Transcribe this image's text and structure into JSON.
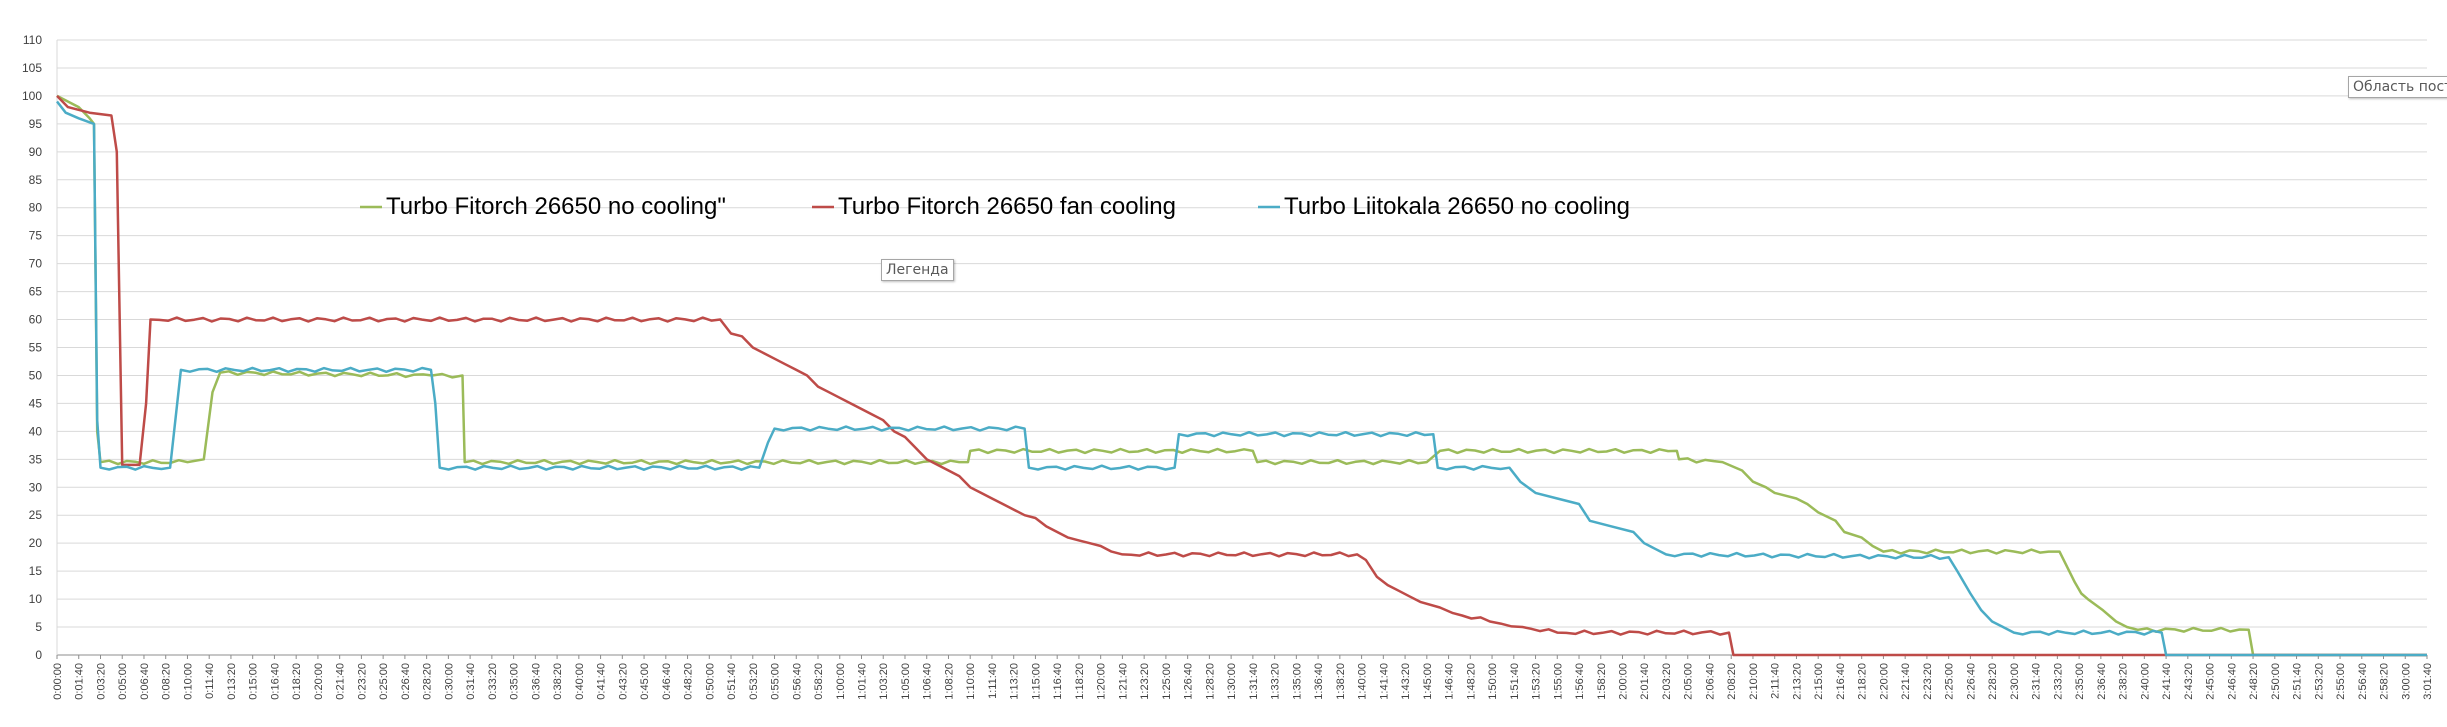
{
  "chart_data": {
    "type": "line",
    "title": "",
    "xlabel": "",
    "ylabel": "",
    "ylim": [
      0,
      110
    ],
    "ytick_step": 5,
    "xlim": [
      "0:00:00",
      "3:01:40"
    ],
    "xtick_step": "0:01:40",
    "grid": "horizontal",
    "legend_position": "top-center",
    "series": [
      {
        "name": "Turbo Fitorch 26650 no cooling\"",
        "color": "#9bbb59",
        "points": [
          [
            "0:00:00",
            100
          ],
          [
            "0:01:40",
            98
          ],
          [
            "0:02:30",
            96
          ],
          [
            "0:02:50",
            95
          ],
          [
            "0:03:05",
            40
          ],
          [
            "0:03:20",
            34.5
          ],
          [
            "0:10:00",
            34.5
          ],
          [
            "0:11:15",
            35
          ],
          [
            "0:11:55",
            47
          ],
          [
            "0:12:30",
            50.5
          ],
          [
            "0:28:45",
            50
          ],
          [
            "0:31:05",
            50
          ],
          [
            "0:31:15",
            34.5
          ],
          [
            "1:09:50",
            34.5
          ],
          [
            "1:10:00",
            36.5
          ],
          [
            "1:31:40",
            36.5
          ],
          [
            "1:32:00",
            34.5
          ],
          [
            "1:45:00",
            34.5
          ],
          [
            "1:46:00",
            36.5
          ],
          [
            "2:04:10",
            36.5
          ],
          [
            "2:04:20",
            35
          ],
          [
            "2:07:40",
            34.5
          ],
          [
            "2:09:10",
            33
          ],
          [
            "2:10:00",
            31
          ],
          [
            "2:11:00",
            30
          ],
          [
            "2:11:40",
            29
          ],
          [
            "2:13:20",
            28
          ],
          [
            "2:14:10",
            27
          ],
          [
            "2:15:00",
            25.5
          ],
          [
            "2:16:20",
            24
          ],
          [
            "2:17:00",
            22
          ],
          [
            "2:18:20",
            21
          ],
          [
            "2:19:10",
            19.5
          ],
          [
            "2:20:00",
            18.5
          ],
          [
            "2:32:40",
            18.5
          ],
          [
            "2:33:30",
            18.5
          ],
          [
            "2:34:40",
            13
          ],
          [
            "2:35:10",
            11
          ],
          [
            "2:35:40",
            10
          ],
          [
            "2:36:50",
            8
          ],
          [
            "2:37:50",
            6
          ],
          [
            "2:38:40",
            5
          ],
          [
            "2:39:30",
            4.5
          ],
          [
            "2:48:00",
            4.5
          ],
          [
            "2:48:20",
            0
          ],
          [
            "3:01:40",
            0
          ]
        ]
      },
      {
        "name": "Turbo Fitorch 26650 fan cooling",
        "color": "#be4b48",
        "points": [
          [
            "0:00:00",
            100
          ],
          [
            "0:00:50",
            98
          ],
          [
            "0:02:30",
            97
          ],
          [
            "0:04:10",
            96.5
          ],
          [
            "0:04:35",
            90
          ],
          [
            "0:05:00",
            34
          ],
          [
            "0:06:20",
            34
          ],
          [
            "0:06:50",
            45
          ],
          [
            "0:07:10",
            60
          ],
          [
            "0:50:50",
            60
          ],
          [
            "0:51:40",
            57.5
          ],
          [
            "0:52:30",
            57
          ],
          [
            "0:53:20",
            55
          ],
          [
            "0:54:10",
            54
          ],
          [
            "0:55:00",
            53
          ],
          [
            "0:55:50",
            52
          ],
          [
            "0:56:40",
            51
          ],
          [
            "0:57:30",
            50
          ],
          [
            "0:58:20",
            48
          ],
          [
            "0:59:10",
            47
          ],
          [
            "1:00:00",
            46
          ],
          [
            "1:00:50",
            45
          ],
          [
            "1:01:40",
            44
          ],
          [
            "1:02:30",
            43
          ],
          [
            "1:03:20",
            42
          ],
          [
            "1:04:10",
            40
          ],
          [
            "1:05:00",
            39
          ],
          [
            "1:05:50",
            37
          ],
          [
            "1:06:40",
            35
          ],
          [
            "1:07:30",
            34
          ],
          [
            "1:08:20",
            33
          ],
          [
            "1:09:10",
            32
          ],
          [
            "1:10:00",
            30
          ],
          [
            "1:10:50",
            29
          ],
          [
            "1:11:40",
            28
          ],
          [
            "1:12:30",
            27
          ],
          [
            "1:13:20",
            26
          ],
          [
            "1:14:10",
            25
          ],
          [
            "1:15:00",
            24.5
          ],
          [
            "1:15:50",
            23
          ],
          [
            "1:16:40",
            22
          ],
          [
            "1:17:30",
            21
          ],
          [
            "1:18:20",
            20.5
          ],
          [
            "1:19:10",
            20
          ],
          [
            "1:20:00",
            19.5
          ],
          [
            "1:20:50",
            18.5
          ],
          [
            "1:21:40",
            18
          ],
          [
            "1:39:40",
            18
          ],
          [
            "1:40:20",
            17
          ],
          [
            "1:41:10",
            14
          ],
          [
            "1:42:00",
            12.5
          ],
          [
            "1:42:50",
            11.5
          ],
          [
            "1:43:40",
            10.5
          ],
          [
            "1:44:30",
            9.5
          ],
          [
            "1:46:00",
            8.5
          ],
          [
            "1:47:00",
            7.5
          ],
          [
            "1:49:50",
            6
          ],
          [
            "1:52:20",
            5
          ],
          [
            "1:55:00",
            4
          ],
          [
            "2:08:10",
            4
          ],
          [
            "2:08:30",
            0
          ],
          [
            "3:01:40",
            0
          ]
        ]
      },
      {
        "name": "Turbo Liitokala 26650 no cooling",
        "color": "#4bacc6",
        "points": [
          [
            "0:00:00",
            99
          ],
          [
            "0:00:40",
            97
          ],
          [
            "0:01:40",
            96
          ],
          [
            "0:02:50",
            95
          ],
          [
            "0:03:05",
            42
          ],
          [
            "0:03:20",
            33.5
          ],
          [
            "0:08:40",
            33.5
          ],
          [
            "0:09:30",
            51
          ],
          [
            "0:28:40",
            51
          ],
          [
            "0:29:00",
            45
          ],
          [
            "0:29:20",
            33.5
          ],
          [
            "0:53:50",
            33.5
          ],
          [
            "0:54:30",
            38
          ],
          [
            "0:55:00",
            40.5
          ],
          [
            "1:14:10",
            40.5
          ],
          [
            "1:14:30",
            33.5
          ],
          [
            "1:25:40",
            33.5
          ],
          [
            "1:26:00",
            39.5
          ],
          [
            "1:45:30",
            39.5
          ],
          [
            "1:45:50",
            33.5
          ],
          [
            "1:51:20",
            33.5
          ],
          [
            "1:52:10",
            31
          ],
          [
            "1:53:20",
            29
          ],
          [
            "1:55:00",
            28
          ],
          [
            "1:56:40",
            27
          ],
          [
            "1:57:30",
            24
          ],
          [
            "1:59:10",
            23
          ],
          [
            "2:00:50",
            22
          ],
          [
            "2:01:40",
            20
          ],
          [
            "2:02:30",
            19
          ],
          [
            "2:03:20",
            18
          ],
          [
            "2:25:00",
            17.5
          ],
          [
            "2:25:40",
            15
          ],
          [
            "2:26:40",
            11
          ],
          [
            "2:27:30",
            8
          ],
          [
            "2:28:20",
            6
          ],
          [
            "2:29:10",
            5
          ],
          [
            "2:30:00",
            4
          ],
          [
            "2:41:20",
            4
          ],
          [
            "2:41:40",
            0
          ],
          [
            "3:01:40",
            0
          ]
        ]
      }
    ]
  },
  "tooltips": {
    "legend": "Легенда",
    "plot_area": "Область постр"
  }
}
